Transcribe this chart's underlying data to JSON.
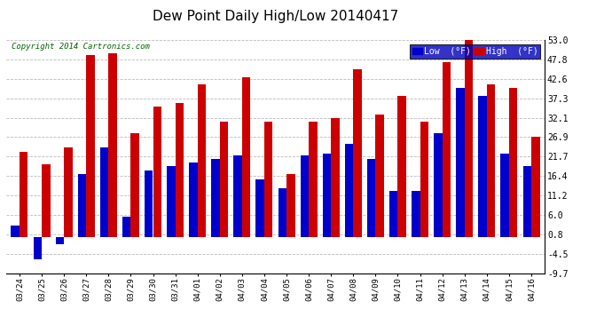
{
  "title": "Dew Point Daily High/Low 20140417",
  "copyright": "Copyright 2014 Cartronics.com",
  "ylabel_right_ticks": [
    53.0,
    47.8,
    42.6,
    37.3,
    32.1,
    26.9,
    21.7,
    16.4,
    11.2,
    6.0,
    0.8,
    -4.5,
    -9.7
  ],
  "dates": [
    "03/24",
    "03/25",
    "03/26",
    "03/27",
    "03/28",
    "03/29",
    "03/30",
    "03/31",
    "04/01",
    "04/02",
    "04/03",
    "04/04",
    "04/05",
    "04/06",
    "04/07",
    "04/08",
    "04/09",
    "04/10",
    "04/11",
    "04/12",
    "04/13",
    "04/14",
    "04/15",
    "04/16"
  ],
  "low_values": [
    3.0,
    -6.0,
    -2.0,
    17.0,
    24.0,
    5.5,
    18.0,
    19.0,
    20.0,
    21.0,
    22.0,
    15.5,
    13.0,
    22.0,
    22.5,
    25.0,
    21.0,
    12.5,
    12.5,
    28.0,
    40.0,
    38.0,
    22.5,
    19.0
  ],
  "high_values": [
    23.0,
    19.5,
    24.0,
    49.0,
    49.5,
    28.0,
    35.0,
    36.0,
    41.0,
    31.0,
    43.0,
    31.0,
    17.0,
    31.0,
    32.0,
    45.0,
    33.0,
    38.0,
    31.0,
    47.0,
    54.0,
    41.0,
    40.0,
    27.0
  ],
  "low_color": "#0000cc",
  "high_color": "#cc0000",
  "bg_color": "#ffffff",
  "grid_color": "#bbbbbb",
  "ylim": [
    -9.7,
    53.0
  ],
  "bar_width": 0.38,
  "legend_low_label": "Low  (°F)",
  "legend_high_label": "High  (°F)",
  "figsize": [
    6.9,
    3.75
  ],
  "dpi": 100
}
